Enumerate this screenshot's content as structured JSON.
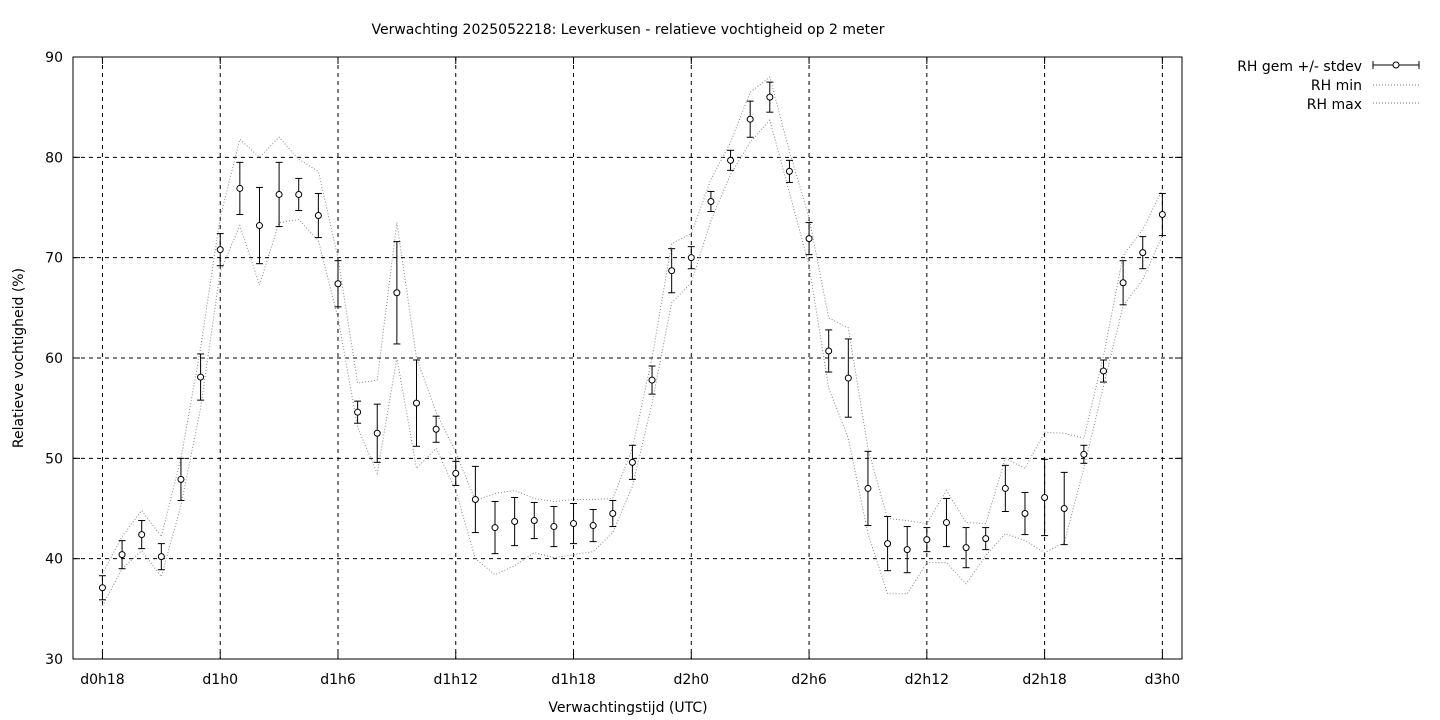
{
  "chart_data": {
    "type": "line",
    "title": "Verwachting 2025052218: Leverkusen - relatieve vochtigheid op 2 meter",
    "xlabel": "Verwachtingstijd (UTC)",
    "ylabel": "Relatieve vochtigheid (%)",
    "xlim": [
      -1.5,
      55
    ],
    "ylim": [
      30,
      90
    ],
    "yticks": [
      30,
      40,
      50,
      60,
      70,
      80,
      90
    ],
    "xticks": [
      {
        "x": 0,
        "label": "d0h18"
      },
      {
        "x": 6,
        "label": "d1h0"
      },
      {
        "x": 12,
        "label": "d1h6"
      },
      {
        "x": 18,
        "label": "d1h12"
      },
      {
        "x": 24,
        "label": "d1h18"
      },
      {
        "x": 30,
        "label": "d2h0"
      },
      {
        "x": 36,
        "label": "d2h6"
      },
      {
        "x": 42,
        "label": "d2h12"
      },
      {
        "x": 48,
        "label": "d2h18"
      },
      {
        "x": 54,
        "label": "d3h0"
      }
    ],
    "grid": true,
    "legend_position": "outside-top-right",
    "x": [
      0,
      1,
      2,
      3,
      4,
      5,
      6,
      7,
      8,
      9,
      10,
      11,
      12,
      13,
      14,
      15,
      16,
      17,
      18,
      19,
      20,
      21,
      22,
      23,
      24,
      25,
      26,
      27,
      28,
      29,
      30,
      31,
      32,
      33,
      34,
      35,
      36,
      37,
      38,
      39,
      40,
      41,
      42,
      43,
      44,
      45,
      46,
      47,
      48,
      49,
      50,
      51,
      52,
      53,
      54
    ],
    "series": [
      {
        "name": "RH gem +/- stdev",
        "style": "points-errorbars",
        "values": [
          37.1,
          40.4,
          42.4,
          40.2,
          47.9,
          58.1,
          70.8,
          76.9,
          73.2,
          76.3,
          76.3,
          74.2,
          67.4,
          54.6,
          52.5,
          66.5,
          55.5,
          52.9,
          48.5,
          45.9,
          43.1,
          43.7,
          43.8,
          43.2,
          43.5,
          43.3,
          44.5,
          49.6,
          57.8,
          68.7,
          70.0,
          75.6,
          79.7,
          83.8,
          86.0,
          78.6,
          71.9,
          60.7,
          58.0,
          47.0,
          41.5,
          40.9,
          41.9,
          43.6,
          41.1,
          42.0,
          47.0,
          44.5,
          46.1,
          45.0,
          50.4,
          58.7,
          67.5,
          70.5,
          74.3
        ],
        "stdev": [
          1.2,
          1.4,
          1.4,
          1.3,
          2.1,
          2.3,
          1.6,
          2.6,
          3.8,
          3.2,
          1.6,
          2.2,
          2.3,
          1.1,
          2.9,
          5.1,
          4.3,
          1.3,
          1.2,
          3.3,
          2.6,
          2.4,
          1.8,
          2.0,
          2.0,
          1.6,
          1.3,
          1.7,
          1.4,
          2.2,
          1.1,
          1.0,
          1.0,
          1.8,
          1.5,
          1.1,
          1.6,
          2.1,
          3.9,
          3.7,
          2.7,
          2.3,
          1.2,
          2.4,
          2.0,
          1.1,
          2.3,
          2.1,
          3.8,
          3.6,
          0.9,
          1.1,
          2.2,
          1.6,
          2.1
        ]
      },
      {
        "name": "RH min",
        "style": "dotted",
        "values": [
          35.3,
          39.0,
          40.8,
          38.2,
          45.3,
          55.0,
          68.6,
          73.2,
          67.3,
          73.5,
          73.8,
          71.7,
          64.0,
          53.1,
          48.5,
          60.0,
          49.0,
          51.0,
          46.8,
          40.0,
          38.4,
          39.3,
          40.6,
          40.1,
          40.4,
          40.7,
          42.6,
          47.2,
          55.5,
          65.5,
          67.5,
          73.7,
          78.3,
          81.5,
          83.7,
          76.5,
          69.2,
          57.0,
          52.0,
          42.5,
          36.5,
          36.5,
          39.6,
          39.6,
          37.5,
          40.3,
          42.5,
          41.8,
          40.6,
          41.6,
          49.0,
          57.2,
          65.2,
          67.8,
          72.2
        ]
      },
      {
        "name": "RH max",
        "style": "dotted",
        "values": [
          38.5,
          42.2,
          44.8,
          42.2,
          50.0,
          61.0,
          74.0,
          81.8,
          80.0,
          82.0,
          79.8,
          78.6,
          70.0,
          57.5,
          57.8,
          73.5,
          60.0,
          54.6,
          50.6,
          45.8,
          46.5,
          46.8,
          46.0,
          45.7,
          45.9,
          45.9,
          46.0,
          51.0,
          60.0,
          71.4,
          72.4,
          77.8,
          81.5,
          86.5,
          88.0,
          80.6,
          74.0,
          64.0,
          63.0,
          51.0,
          44.0,
          43.8,
          43.5,
          46.8,
          43.6,
          43.5,
          50.0,
          49.0,
          52.6,
          52.5,
          52.0,
          60.2,
          70.2,
          72.8,
          76.8
        ]
      }
    ]
  }
}
